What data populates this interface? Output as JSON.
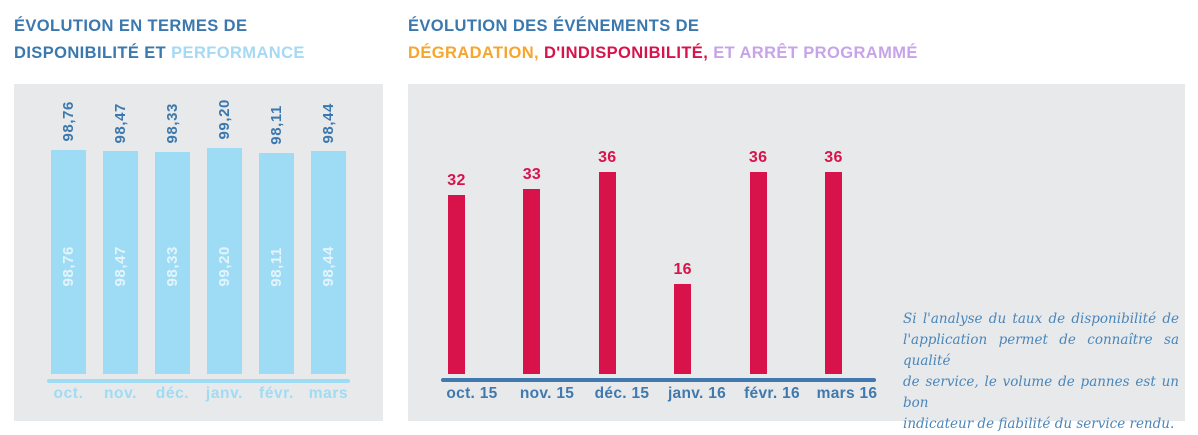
{
  "availability": {
    "title_line1": "ÉVOLUTION EN TERMES DE",
    "title_line2_main": "DISPONIBILITÉ ET ",
    "title_line2_accent": "PERFORMANCE"
  },
  "events": {
    "title_line1": "ÉVOLUTION DES ÉVÉNEMENTS DE",
    "title_line2_orange": "DÉGRADATION, ",
    "title_line2_red": "D'INDISPONIBILITÉ, ",
    "title_line2_purple": "ET ARRÊT PROGRAMMÉ"
  },
  "note": {
    "lines": [
      "Si l'analyse du taux de disponibilité de",
      "l'application permet de connaître sa qualité",
      "de service, le volume de pannes est un bon",
      "indicateur de fiabilité du service rendu."
    ],
    "full_text": "Si l'analyse du taux de disponibilité de l'application permet de connaître sa qualité de service, le volume de pannes est un bon indicateur de fiabilité du service rendu."
  },
  "colors": {
    "title_blue": "#3a78ae",
    "light_blue": "#9edcf5",
    "pale_blue_label": "#e3f4fc",
    "crimson": "#d8134b",
    "orange": "#f6a62d",
    "purple": "#c7a3e8",
    "steel_blue": "#4079ae",
    "note_blue": "#4a86ba",
    "panel_gray": "#e8e9eb"
  },
  "chart_data": [
    {
      "id": "availability",
      "type": "bar",
      "title": "ÉVOLUTION EN TERMES DE DISPONIBILITÉ ET PERFORMANCE",
      "categories": [
        "oct.",
        "nov.",
        "déc.",
        "janv.",
        "févr.",
        "mars"
      ],
      "values": [
        98.76,
        98.47,
        98.33,
        99.2,
        98.11,
        98.44
      ],
      "value_labels": [
        "98,76",
        "98,47",
        "98,33",
        "99,20",
        "98,11",
        "98,44"
      ],
      "value_label_position": "rotated above bar and repeated inside bar",
      "bar_color": "#9edcf5",
      "value_label_color": "#3a78ae",
      "inner_label_color": "#e3f4fc",
      "axis_color": "#9edcf5",
      "category_label_color": "#9edcf5",
      "ylim": [
        50,
        100
      ],
      "grid": false,
      "legend": null
    },
    {
      "id": "events",
      "type": "bar",
      "title": "ÉVOLUTION DES ÉVÉNEMENTS DE DÉGRADATION, D'INDISPONIBILITÉ, ET ARRÊT PROGRAMMÉ",
      "categories": [
        "oct. 15",
        "nov. 15",
        "déc. 15",
        "janv. 16",
        "févr. 16",
        "mars 16"
      ],
      "values": [
        32,
        33,
        36,
        16,
        36,
        36
      ],
      "value_labels": [
        "32",
        "33",
        "36",
        "16",
        "36",
        "36"
      ],
      "value_label_position": "above bar",
      "bar_color": "#d8134b",
      "value_label_color": "#d8134b",
      "axis_color": "#4079ae",
      "category_label_color": "#4079ae",
      "ylim": [
        0,
        40
      ],
      "grid": false,
      "legend": null
    }
  ]
}
